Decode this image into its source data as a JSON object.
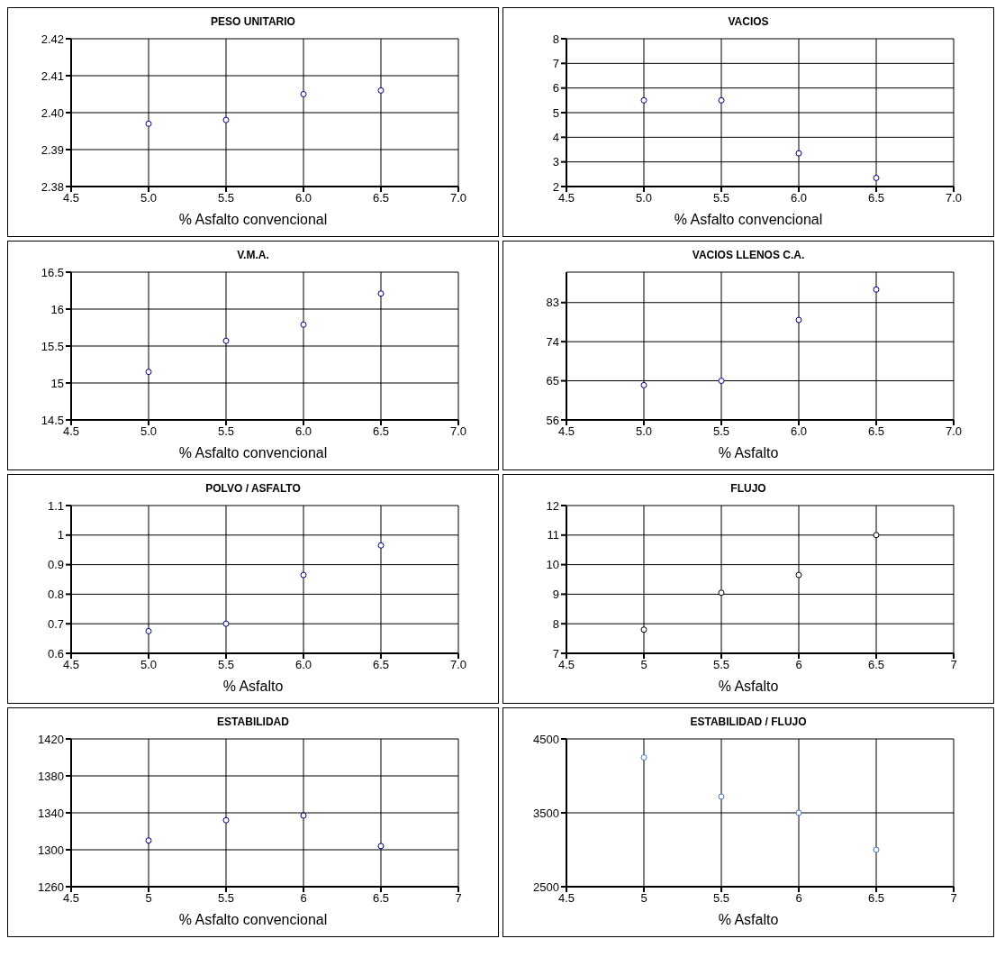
{
  "chart_data": [
    {
      "type": "scatter",
      "title": "PESO UNITARIO",
      "xlabel": "% Asfalto convencional",
      "x": [
        5,
        5.5,
        6,
        6.5
      ],
      "series": [
        {
          "color": "#000080",
          "values": [
            2.397,
            2.398,
            2.405,
            2.406
          ]
        }
      ],
      "xlim": [
        4.5,
        7
      ],
      "xticks": [
        4.5,
        {
          "value": 5,
          "label": "5.0"
        },
        5.5,
        {
          "value": 6,
          "label": "6.0"
        },
        6.5,
        {
          "value": 7,
          "label": "7.0"
        }
      ],
      "ylim": [
        2.38,
        2.42
      ],
      "yticks": [
        2.38,
        2.39,
        {
          "value": 2.4,
          "label": "2.40"
        },
        2.41,
        2.42
      ],
      "grid": true,
      "marker": "circle"
    },
    {
      "type": "scatter",
      "title": "VACIOS",
      "xlabel": "% Asfalto convencional",
      "x": [
        5,
        5.5,
        6,
        6.5
      ],
      "series": [
        {
          "color": "#000080",
          "values": [
            5.5,
            5.5,
            3.35,
            2.35
          ]
        }
      ],
      "xlim": [
        4.5,
        7
      ],
      "xticks": [
        4.5,
        {
          "value": 5,
          "label": "5.0"
        },
        5.5,
        {
          "value": 6,
          "label": "6.0"
        },
        6.5,
        {
          "value": 7,
          "label": "7.0"
        }
      ],
      "ylim": [
        2,
        8
      ],
      "yticks": [
        2,
        3,
        4,
        5,
        6,
        7,
        8
      ],
      "grid": true,
      "marker": "circle"
    },
    {
      "type": "scatter",
      "title": "V.M.A.",
      "xlabel": "% Asfalto convencional",
      "x": [
        5,
        5.5,
        6,
        6.5
      ],
      "series": [
        {
          "color": "#000080",
          "values": [
            15.15,
            15.57,
            15.79,
            16.21
          ]
        }
      ],
      "xlim": [
        4.5,
        7
      ],
      "xticks": [
        4.5,
        {
          "value": 5,
          "label": "5.0"
        },
        5.5,
        {
          "value": 6,
          "label": "6.0"
        },
        6.5,
        {
          "value": 7,
          "label": "7.0"
        }
      ],
      "ylim": [
        14.5,
        16.5
      ],
      "yticks": [
        14.5,
        15,
        15.5,
        16,
        16.5
      ],
      "grid": true,
      "marker": "circle"
    },
    {
      "type": "scatter",
      "title": "VACIOS LLENOS C.A.",
      "xlabel": "% Asfalto",
      "x": [
        5,
        5.5,
        6,
        6.5
      ],
      "series": [
        {
          "color": "#000080",
          "values": [
            64,
            65,
            79,
            86
          ]
        }
      ],
      "xlim": [
        4.5,
        7
      ],
      "xticks": [
        4.5,
        {
          "value": 5,
          "label": "5.0"
        },
        5.5,
        {
          "value": 6,
          "label": "6.0"
        },
        6.5,
        {
          "value": 7,
          "label": "7.0"
        }
      ],
      "ylim": [
        56,
        90
      ],
      "yticks": [
        56,
        65,
        74,
        83
      ],
      "grid": true,
      "marker": "circle"
    },
    {
      "type": "scatter",
      "title": "POLVO / ASFALTO",
      "xlabel": "% Asfalto",
      "x": [
        5,
        5.5,
        6,
        6.5
      ],
      "series": [
        {
          "color": "#000080",
          "values": [
            0.675,
            0.7,
            0.865,
            0.965
          ]
        }
      ],
      "xlim": [
        4.5,
        7
      ],
      "xticks": [
        4.5,
        {
          "value": 5,
          "label": "5.0"
        },
        5.5,
        {
          "value": 6,
          "label": "6.0"
        },
        6.5,
        {
          "value": 7,
          "label": "7.0"
        }
      ],
      "ylim": [
        0.6,
        1.1
      ],
      "yticks": [
        0.6,
        0.7,
        0.8,
        0.9,
        1,
        1.1
      ],
      "grid": true,
      "marker": "circle"
    },
    {
      "type": "scatter",
      "title": "FLUJO",
      "xlabel": "% Asfalto",
      "x": [
        5,
        5.5,
        6,
        6.5
      ],
      "series": [
        {
          "color": "#000000",
          "values": [
            7.8,
            9.05,
            9.65,
            11
          ]
        }
      ],
      "xlim": [
        4.5,
        7
      ],
      "xticks": [
        4.5,
        5,
        5.5,
        6,
        6.5,
        7
      ],
      "ylim": [
        7,
        12
      ],
      "yticks": [
        7,
        8,
        9,
        10,
        11,
        12
      ],
      "grid": true,
      "marker": "circle"
    },
    {
      "type": "scatter",
      "title": "ESTABILIDAD",
      "xlabel": "% Asfalto convencional",
      "x": [
        5,
        5.5,
        6,
        6.5
      ],
      "series": [
        {
          "color": "#000080",
          "values": [
            1310,
            1332,
            1337,
            1304
          ]
        }
      ],
      "xlim": [
        4.5,
        7
      ],
      "xticks": [
        4.5,
        5,
        5.5,
        6,
        6.5,
        7
      ],
      "ylim": [
        1260,
        1420
      ],
      "yticks": [
        1260,
        1300,
        1340,
        1380,
        1420
      ],
      "grid": true,
      "marker": "circle"
    },
    {
      "type": "scatter",
      "title": "ESTABILIDAD / FLUJO",
      "xlabel": "% Asfalto",
      "x": [
        5,
        5.5,
        6,
        6.5
      ],
      "series": [
        {
          "color": "#4472c4",
          "values": [
            4250,
            3720,
            3500,
            3000
          ]
        }
      ],
      "xlim": [
        4.5,
        7
      ],
      "xticks": [
        4.5,
        5,
        5.5,
        6,
        6.5,
        7
      ],
      "ylim": [
        2500,
        4500
      ],
      "yticks": [
        2500,
        3500,
        4500
      ],
      "grid": true,
      "marker": "circle"
    }
  ]
}
